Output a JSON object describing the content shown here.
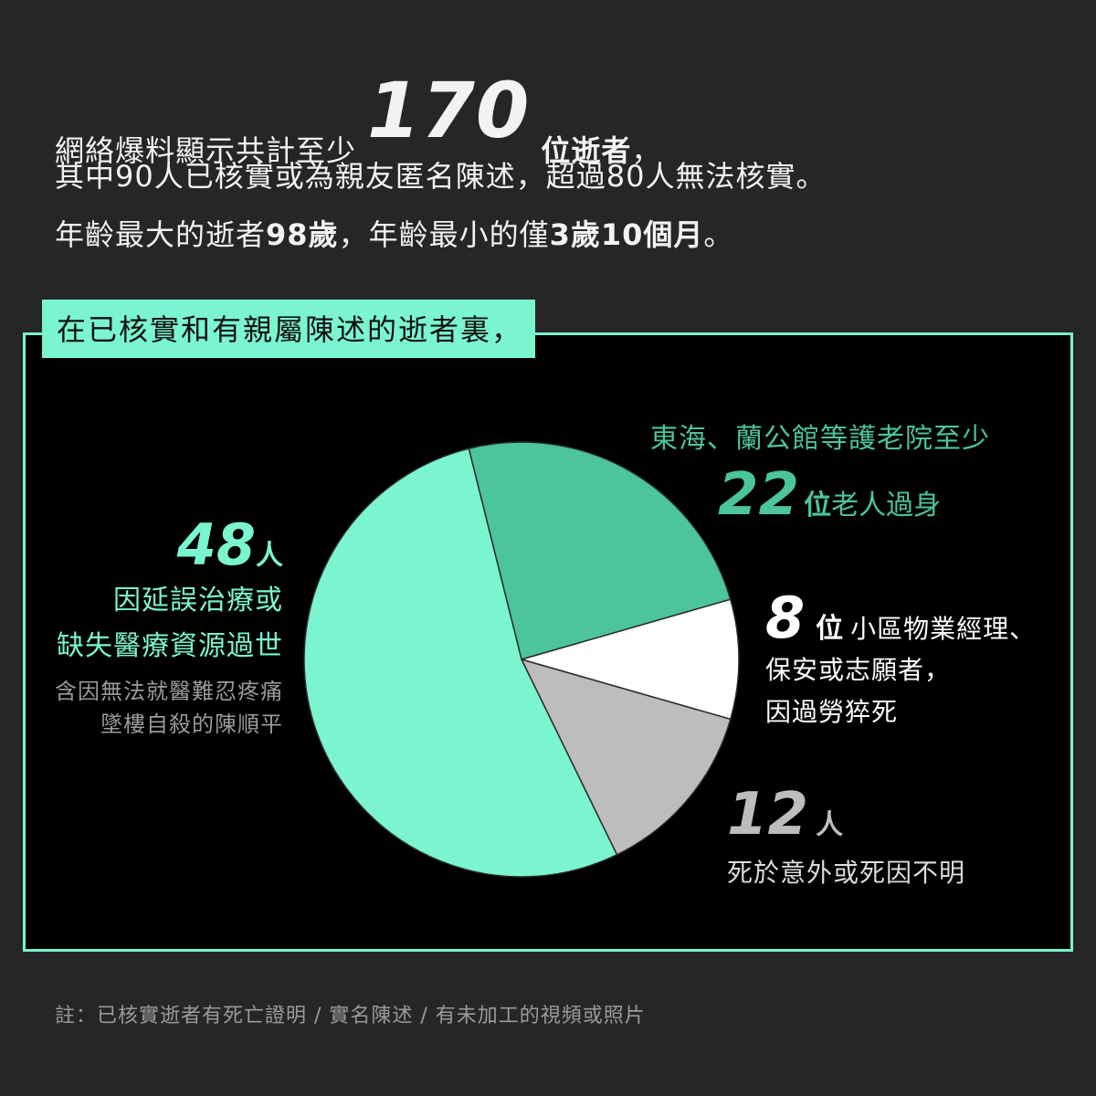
{
  "headline": {
    "line1_pre": "網絡爆料顯示共計至少",
    "line1_number": "170",
    "line1_post": "位逝者",
    "line1_punct": "，",
    "line2": "其中90人已核實或為親友匿名陳述，超過80人無法核實。",
    "line3_a": "年齡最大的逝者",
    "line3_b": "98歲",
    "line3_c": "，年齡最小的僅",
    "line3_d": "3歲10個月",
    "line3_e": "。"
  },
  "panel": {
    "title": "在已核實和有親屬陳述的逝者裏，"
  },
  "labels": {
    "g48": {
      "number": "48",
      "unit": "人",
      "desc1": "因延誤治療或",
      "desc2": "缺失醫療資源過世",
      "sub1": "含因無法就醫難忍疼痛",
      "sub2": "墜樓自殺的陳順平"
    },
    "g22": {
      "line1": "東海、蘭公館等護老院至少",
      "number": "22",
      "unit_bold": "位",
      "unit": "老人過身"
    },
    "g8": {
      "number": "8",
      "unit_bold": "位",
      "desc1": "小區物業經理、",
      "desc2": "保安或志願者，",
      "desc3": "因過勞猝死"
    },
    "g12": {
      "number": "12",
      "unit_bold": "人",
      "desc": "死於意外或死因不明"
    }
  },
  "chart_data": {
    "type": "pie",
    "categories": [
      "因延誤治療或缺失醫療資源過世",
      "護老院老人過身",
      "小區物業經理、保安或志願者因過勞猝死",
      "死於意外或死因不明"
    ],
    "values": [
      48,
      22,
      8,
      12
    ],
    "colors": [
      "#7af5cf",
      "#4cc49c",
      "#ffffff",
      "#bdbdbd"
    ],
    "stroke": "#2b2b2b"
  },
  "note": "註：已核實逝者有死亡證明 / 實名陳述 / 有未加工的視頻或照片"
}
